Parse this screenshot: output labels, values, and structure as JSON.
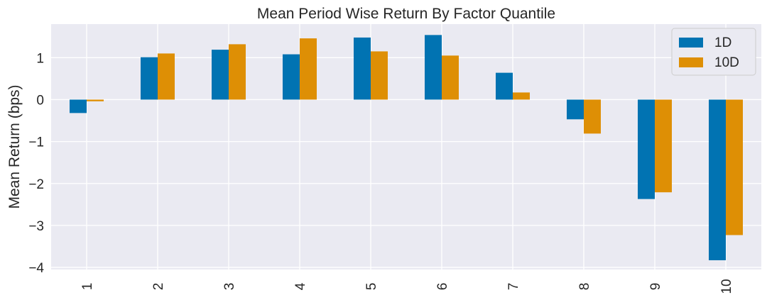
{
  "chart_data": {
    "type": "bar",
    "title": "Mean Period Wise Return By Factor Quantile",
    "xlabel": "",
    "ylabel": "Mean Return (bps)",
    "categories": [
      "1",
      "2",
      "3",
      "4",
      "5",
      "6",
      "7",
      "8",
      "9",
      "10"
    ],
    "series": [
      {
        "name": "1D",
        "color": "#0173b2",
        "values": [
          -0.32,
          1.01,
          1.19,
          1.08,
          1.48,
          1.54,
          0.64,
          -0.47,
          -2.37,
          -3.83
        ]
      },
      {
        "name": "10D",
        "color": "#de8f05",
        "values": [
          -0.04,
          1.1,
          1.32,
          1.46,
          1.15,
          1.05,
          0.17,
          -0.81,
          -2.21,
          -3.23
        ]
      }
    ],
    "ylim": [
      -4.05,
      1.8
    ],
    "yticks": [
      1,
      0,
      -1,
      -2,
      -3,
      -4
    ],
    "ytick_labels": [
      "1",
      "0",
      "−1",
      "−2",
      "−3",
      "−4"
    ],
    "grid": true,
    "background": "#eaeaf2",
    "legend": "top-right"
  }
}
